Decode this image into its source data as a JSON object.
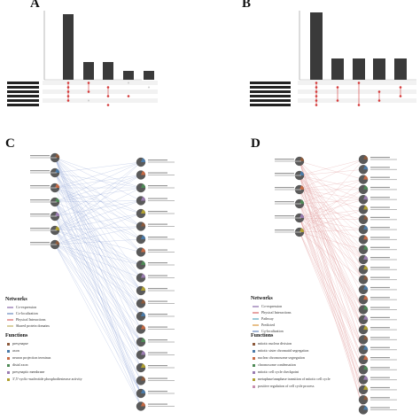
{
  "panels": {
    "a": "A",
    "b": "B",
    "c": "C",
    "d": "D"
  },
  "panel_c_legends": {
    "networks_title": "Networks",
    "networks": [
      {
        "label": "Co-expression",
        "color": "#b9a6cc"
      },
      {
        "label": "Co-localization",
        "color": "#a5b8d8"
      },
      {
        "label": "Physical Interactions",
        "color": "#e7a3a3"
      },
      {
        "label": "Shared protein domains",
        "color": "#d8cfa0"
      }
    ],
    "functions_title": "Functions",
    "functions": [
      {
        "label": "presynapse",
        "color": "#8c5a3c"
      },
      {
        "label": "axon",
        "color": "#4a7aa8"
      },
      {
        "label": "neuron projection terminus",
        "color": "#c76a44"
      },
      {
        "label": "distal axon",
        "color": "#4e8a56"
      },
      {
        "label": "presynaptic membrane",
        "color": "#9a7cb0"
      },
      {
        "label": "3',5'-cyclic-nucleotide phosphodiesterase activity",
        "color": "#b0a030"
      }
    ]
  },
  "panel_d_legends": {
    "networks_title": "Networks",
    "networks": [
      {
        "label": "Co-expression",
        "color": "#b9a6cc"
      },
      {
        "label": "Physical Interactions",
        "color": "#e7a3a3"
      },
      {
        "label": "Pathway",
        "color": "#9ccad8"
      },
      {
        "label": "Predicted",
        "color": "#e8c08a"
      },
      {
        "label": "Co-localization",
        "color": "#a5b8d8"
      }
    ],
    "functions_title": "Functions",
    "functions": [
      {
        "label": "mitotic nuclear division",
        "color": "#8c5a3c"
      },
      {
        "label": "mitotic sister chromatid segregation",
        "color": "#4a7aa8"
      },
      {
        "label": "nuclear chromosome segregation",
        "color": "#c76a44"
      },
      {
        "label": "chromosome condensation",
        "color": "#4e8a56"
      },
      {
        "label": "mitotic cell cycle checkpoint",
        "color": "#9a7cb0"
      },
      {
        "label": "metaphase/anaphase transition of mitotic cell cycle",
        "color": "#b0a030"
      },
      {
        "label": "positive regulation of cell cycle process",
        "color": "#c78fb0"
      }
    ]
  },
  "colors": {
    "bar": "#3a3a3a",
    "dot_on": "#d43a3a",
    "dot_off": "#cccccc",
    "edge_c": "#7f95d0",
    "edge_d": "#d98a8a",
    "node": "#555555"
  }
}
